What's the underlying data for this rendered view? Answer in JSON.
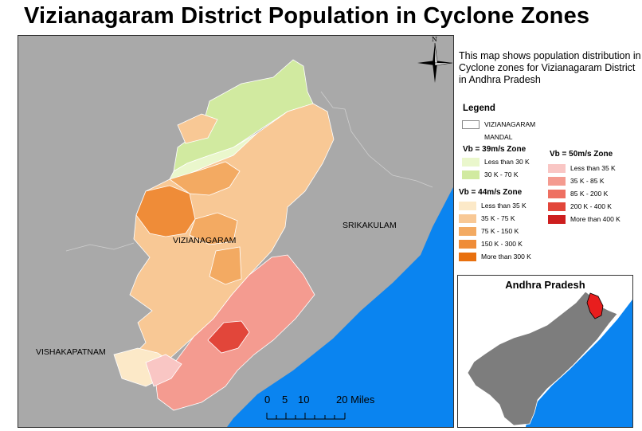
{
  "title": "Vizianagaram District Population in Cyclone Zones",
  "description": "This map shows population distribution in Cyclone zones for Vizianagaram District in Andhra Pradesh",
  "north_arrow": {
    "label": "N",
    "icon": "north-arrow-icon"
  },
  "map_labels": {
    "vizianagaram": "VIZIANAGARAM",
    "srikakulam": "SRIKAKULAM",
    "vishakapatnam": "VISHAKAPATNAM"
  },
  "legend": {
    "title": "Legend",
    "boundary_label_1": "VIZIANAGARAM",
    "boundary_label_2": "MANDAL",
    "zone39": {
      "heading": "Vb = 39m/s Zone",
      "items": [
        {
          "label": "Less than 30 K",
          "color": "#eaf7cc"
        },
        {
          "label": "30 K - 70 K",
          "color": "#d1eaa0"
        }
      ]
    },
    "zone44": {
      "heading": "Vb = 44m/s Zone",
      "items": [
        {
          "label": "Less than 35 K",
          "color": "#fce9c8"
        },
        {
          "label": "35 K - 75 K",
          "color": "#f8c895"
        },
        {
          "label": "75 K - 150 K",
          "color": "#f3aa62"
        },
        {
          "label": "150 K - 300 K",
          "color": "#ef8c38"
        },
        {
          "label": "More than 300 K",
          "color": "#e8700f"
        }
      ]
    },
    "zone50": {
      "heading": "Vb = 50m/s Zone",
      "items": [
        {
          "label": "Less than 35 K",
          "color": "#f9c6c4"
        },
        {
          "label": "35 K - 85 K",
          "color": "#f49b90"
        },
        {
          "label": "85 K - 200 K",
          "color": "#ee7062"
        },
        {
          "label": "200 K - 400 K",
          "color": "#e2463a"
        },
        {
          "label": "More than 400 K",
          "color": "#cd1e1e"
        }
      ]
    }
  },
  "inset": {
    "title": "Andhra Pradesh"
  },
  "scale": {
    "labels": [
      "0",
      "5",
      "10",
      "20 Miles"
    ]
  },
  "colors": {
    "land": "#a9a9a9",
    "sea": "#0a84f0",
    "inset_state": "#7d7d7d",
    "highlight": "#e81e1e"
  }
}
